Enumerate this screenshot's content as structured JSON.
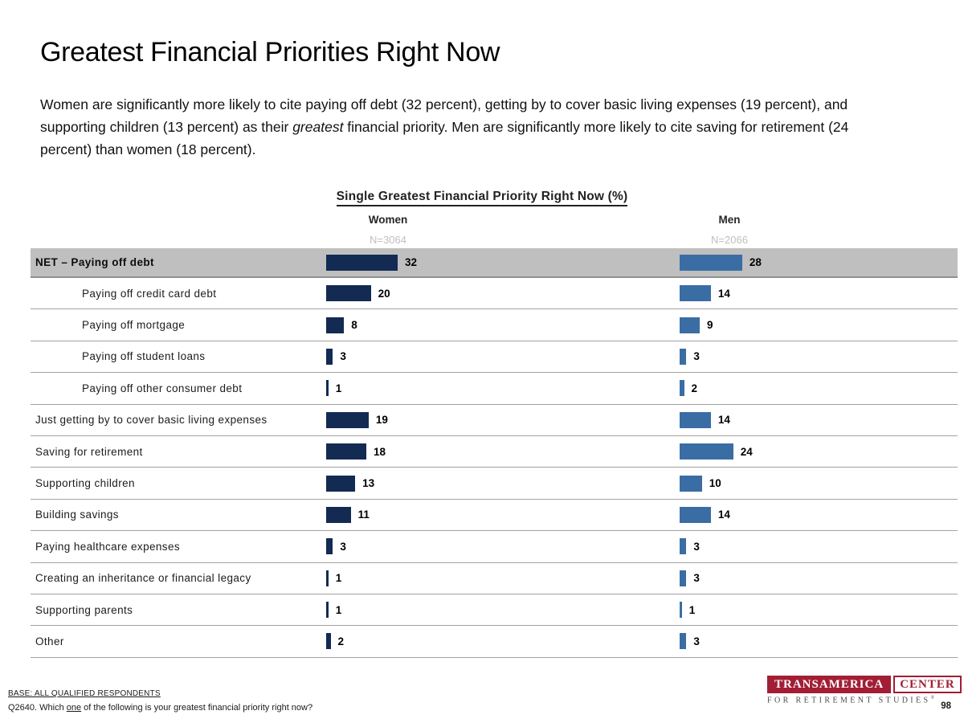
{
  "slide": {
    "title": "Greatest Financial Priorities Right Now",
    "intro": {
      "part1": "Women are significantly more likely to cite paying off debt (32 percent), getting by to cover basic living expenses (19 percent), and supporting children (13 percent) as their ",
      "emphasis": "greatest",
      "part2": " financial priority. Men are significantly more likely to cite saving for retirement (24 percent) than women (18 percent)."
    },
    "page_number": "98"
  },
  "chart_data": {
    "type": "bar",
    "orientation": "horizontal",
    "title": "Single Greatest Financial Priority Right Now (%)",
    "categories": [
      "NET – Paying off debt",
      "Paying off credit card debt",
      "Paying off mortgage",
      "Paying off student loans",
      "Paying off other consumer debt",
      "Just getting by to cover basic living expenses",
      "Saving for retirement",
      "Supporting children",
      "Building savings",
      "Paying healthcare expenses",
      "Creating an inheritance or financial legacy",
      "Supporting parents",
      "Other"
    ],
    "series": [
      {
        "name": "Women",
        "n_label": "N=3064",
        "color": "#132a53",
        "values": [
          32,
          20,
          8,
          3,
          1,
          19,
          18,
          13,
          11,
          3,
          1,
          1,
          2
        ]
      },
      {
        "name": "Men",
        "n_label": "N=2066",
        "color": "#3a6da4",
        "values": [
          28,
          14,
          9,
          3,
          2,
          14,
          24,
          10,
          14,
          3,
          3,
          1,
          3
        ]
      }
    ],
    "net_rows": [
      0
    ],
    "sub_rows": [
      1,
      2,
      3,
      4
    ],
    "net_row_bg": "#bfbfbf",
    "xlim": [
      0,
      100
    ],
    "grid": false,
    "legend_position": "column-headers"
  },
  "footer": {
    "base_label": "BASE: ALL QUALIFIED RESPONDENTS",
    "question": {
      "part1": "Q2640. Which ",
      "underlined": "one",
      "part2": " of the following is your greatest financial priority right now?"
    },
    "logo": {
      "brand": "TRANSAMERICA",
      "brand2": "CENTER",
      "tagline": "FOR RETIREMENT STUDIES",
      "reg": "®",
      "brand_color": "#a21e35"
    }
  }
}
